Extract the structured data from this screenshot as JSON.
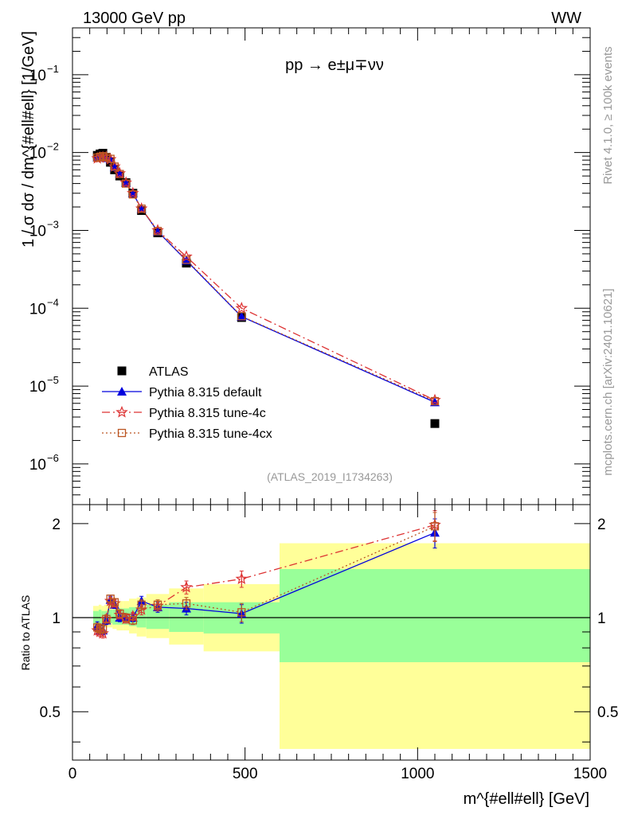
{
  "header": {
    "left": "13000 GeV pp",
    "right": "WW"
  },
  "side_labels": {
    "rivet": "Rivet 4.1.0, ≥ 100k events",
    "mcplots": "mcplots.cern.ch [arXiv:2401.10621]"
  },
  "watermark": "(ATLAS_2019_I1734263)",
  "process_label": "pp → e±μ∓νν",
  "colors": {
    "atlas": "#000000",
    "default": "#0000dd",
    "tune4c": "#dd3333",
    "tune4cx": "#bb5522",
    "band_inner": "#99ff99",
    "band_outer": "#ffff99"
  },
  "chart_data": [
    {
      "type": "scatter",
      "panel": "main",
      "yscale": "log",
      "xlabel": "m^{#ell#ell} [GeV]",
      "ylabel": "1 / σ  dσ / dm^{#ell#ell} [1/GeV]",
      "xlim": [
        0,
        1500
      ],
      "ylim": [
        3e-07,
        0.4
      ],
      "y_ticks": [
        {
          "value": 1e-06,
          "label": "10",
          "exp": "−6"
        },
        {
          "value": 1e-05,
          "label": "10",
          "exp": "−5"
        },
        {
          "value": 0.0001,
          "label": "10",
          "exp": "−4"
        },
        {
          "value": 0.001,
          "label": "10",
          "exp": "−3"
        },
        {
          "value": 0.01,
          "label": "10",
          "exp": "−2"
        },
        {
          "value": 0.1,
          "label": "10",
          "exp": "−1"
        }
      ],
      "x_ticks": [
        0,
        500,
        1000,
        1500
      ],
      "x": [
        72,
        80,
        88,
        98,
        110,
        122,
        137,
        155,
        175,
        200,
        247,
        330,
        490,
        1050
      ],
      "series": [
        {
          "name": "ATLAS",
          "key": "atlas",
          "marker": "square",
          "line": "none",
          "values": [
            0.0092,
            0.0096,
            0.0098,
            0.0087,
            0.0075,
            0.006,
            0.005,
            0.0041,
            0.003,
            0.0018,
            0.00093,
            0.00038,
            7.6e-05,
            3.3e-06
          ]
        },
        {
          "name": "Pythia 8.315 default",
          "key": "default",
          "marker": "triangle",
          "line": "solid",
          "values": [
            0.0087,
            0.0087,
            0.0089,
            0.0085,
            0.0082,
            0.0065,
            0.0054,
            0.0041,
            0.003,
            0.0019,
            0.00097,
            0.00041,
            7.8e-05,
            6.2e-06
          ]
        },
        {
          "name": "Pythia 8.315 tune-4c",
          "key": "tune4c",
          "marker": "star",
          "line": "dashdot",
          "values": [
            0.0084,
            0.0086,
            0.0087,
            0.0087,
            0.0082,
            0.0066,
            0.0054,
            0.0041,
            0.003,
            0.0019,
            0.001,
            0.00046,
            0.0001,
            6.6e-06
          ]
        },
        {
          "name": "Pythia 8.315 tune-4cx",
          "key": "tune4cx",
          "marker": "open-square",
          "line": "dotted",
          "values": [
            0.0086,
            0.0088,
            0.009,
            0.0087,
            0.0083,
            0.0066,
            0.0053,
            0.004,
            0.0029,
            0.0019,
            0.00098,
            0.00042,
            7.9e-05,
            6.4e-06
          ]
        }
      ]
    },
    {
      "type": "line",
      "panel": "ratio",
      "yscale": "log",
      "ylabel": "Ratio to ATLAS",
      "xlabel": "m^{#ell#ell} [GeV]",
      "xlim": [
        0,
        1500
      ],
      "ylim": [
        0.35,
        2.3
      ],
      "y_ticks": [
        0.5,
        1,
        2
      ],
      "x_ticks": [
        0,
        500,
        1000,
        1500
      ],
      "reference": 1,
      "band_edges": [
        60,
        76,
        84,
        92,
        104,
        116,
        128,
        146,
        164,
        186,
        214,
        280,
        380,
        600,
        1500
      ],
      "band_inner": [
        [
          0.95,
          1.05
        ],
        [
          0.95,
          1.06
        ],
        [
          0.96,
          1.05
        ],
        [
          0.96,
          1.05
        ],
        [
          0.96,
          1.06
        ],
        [
          0.95,
          1.06
        ],
        [
          0.95,
          1.07
        ],
        [
          0.95,
          1.07
        ],
        [
          0.94,
          1.08
        ],
        [
          0.93,
          1.08
        ],
        [
          0.92,
          1.1
        ],
        [
          0.9,
          1.12
        ],
        [
          0.89,
          1.12
        ],
        [
          0.72,
          1.43
        ]
      ],
      "band_outer": [
        [
          0.92,
          1.09
        ],
        [
          0.92,
          1.1
        ],
        [
          0.93,
          1.09
        ],
        [
          0.93,
          1.1
        ],
        [
          0.93,
          1.11
        ],
        [
          0.92,
          1.12
        ],
        [
          0.91,
          1.13
        ],
        [
          0.91,
          1.13
        ],
        [
          0.89,
          1.15
        ],
        [
          0.87,
          1.16
        ],
        [
          0.86,
          1.19
        ],
        [
          0.82,
          1.24
        ],
        [
          0.78,
          1.28
        ],
        [
          0.38,
          1.73
        ]
      ],
      "x": [
        72,
        80,
        88,
        98,
        110,
        122,
        137,
        155,
        175,
        200,
        247,
        330,
        490,
        1050
      ],
      "series": [
        {
          "name": "Pythia 8.315 default",
          "key": "default",
          "marker": "triangle",
          "line": "solid",
          "values": [
            0.94,
            0.91,
            0.91,
            0.98,
            1.14,
            1.1,
            1.0,
            1.0,
            1.0,
            1.13,
            1.08,
            1.07,
            1.03,
            1.87
          ],
          "errors": [
            0.03,
            0.03,
            0.03,
            0.03,
            0.03,
            0.03,
            0.03,
            0.03,
            0.03,
            0.04,
            0.04,
            0.05,
            0.07,
            0.2
          ]
        },
        {
          "name": "Pythia 8.315 tune-4c",
          "key": "tune4c",
          "marker": "star",
          "line": "dashdot",
          "values": [
            0.91,
            0.9,
            0.89,
            0.99,
            1.13,
            1.11,
            1.02,
            0.99,
            1.01,
            1.06,
            1.09,
            1.25,
            1.33,
            1.98
          ],
          "errors": [
            0.03,
            0.03,
            0.03,
            0.03,
            0.03,
            0.03,
            0.03,
            0.03,
            0.03,
            0.04,
            0.04,
            0.06,
            0.08,
            0.22
          ]
        },
        {
          "name": "Pythia 8.315 tune-4cx",
          "key": "tune4cx",
          "marker": "open-square",
          "line": "dotted",
          "values": [
            0.93,
            0.92,
            0.92,
            0.99,
            1.15,
            1.12,
            1.03,
            1.0,
            0.98,
            1.1,
            1.1,
            1.11,
            1.04,
            1.96
          ],
          "errors": [
            0.03,
            0.03,
            0.03,
            0.03,
            0.03,
            0.03,
            0.03,
            0.03,
            0.03,
            0.04,
            0.04,
            0.05,
            0.07,
            0.21
          ]
        }
      ]
    }
  ]
}
